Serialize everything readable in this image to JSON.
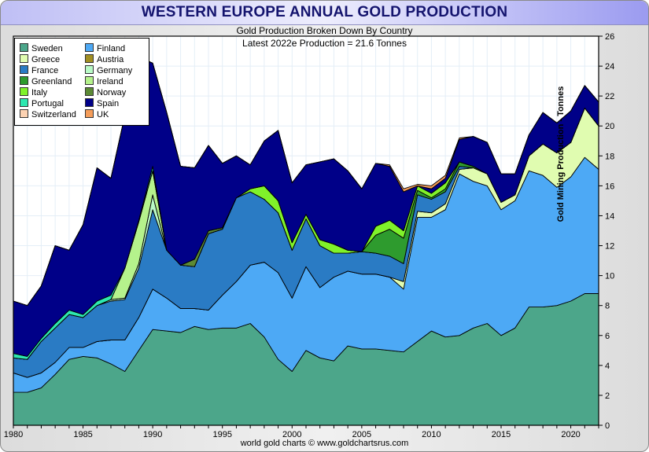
{
  "window": {
    "title": "WESTERN EUROPE ANNUAL GOLD PRODUCTION",
    "footer": "world gold charts © www.goldchartsrus.com"
  },
  "chart_data": {
    "type": "area",
    "stacked": true,
    "title": "WESTERN EUROPE ANNUAL GOLD PRODUCTION",
    "subtitle": "Gold Production Broken Down By Country",
    "annotation": "Latest 2022e Production = 21.6 Tonnes",
    "xlabel": "",
    "ylabel": "Gold Mining Production - Tonnes",
    "xlim": [
      1980,
      2022
    ],
    "ylim": [
      0,
      26
    ],
    "grid": true,
    "legend_position": "top-left",
    "x_ticks": [
      1980,
      1985,
      1990,
      1995,
      2000,
      2005,
      2010,
      2015,
      2020
    ],
    "y_ticks": [
      0,
      2,
      4,
      6,
      8,
      10,
      12,
      14,
      16,
      18,
      20,
      22,
      24,
      26
    ],
    "x": [
      1980,
      1981,
      1982,
      1983,
      1984,
      1985,
      1986,
      1987,
      1988,
      1989,
      1990,
      1991,
      1992,
      1993,
      1994,
      1995,
      1996,
      1997,
      1998,
      1999,
      2000,
      2001,
      2002,
      2003,
      2004,
      2005,
      2006,
      2007,
      2008,
      2009,
      2010,
      2011,
      2012,
      2013,
      2014,
      2015,
      2016,
      2017,
      2018,
      2019,
      2020,
      2021,
      2022
    ],
    "series": [
      {
        "name": "Sweden",
        "color": "#4ca68a",
        "values": [
          2.2,
          2.2,
          2.5,
          3.4,
          4.4,
          4.6,
          4.5,
          4.1,
          3.6,
          5.0,
          6.4,
          6.3,
          6.2,
          6.6,
          6.4,
          6.5,
          6.5,
          6.8,
          5.9,
          4.4,
          3.6,
          5.0,
          4.5,
          4.3,
          5.3,
          5.1,
          5.1,
          5.0,
          4.9,
          5.6,
          6.3,
          5.9,
          6.0,
          6.5,
          6.8,
          6.0,
          6.5,
          7.9,
          7.9,
          8.0,
          8.3,
          8.8,
          8.8
        ]
      },
      {
        "name": "Finland",
        "color": "#4da9f5",
        "values": [
          1.3,
          1.0,
          1.0,
          0.8,
          0.8,
          0.6,
          1.1,
          1.6,
          2.1,
          2.2,
          2.7,
          2.2,
          1.6,
          1.2,
          1.3,
          2.2,
          3.1,
          3.9,
          5.0,
          5.8,
          4.9,
          5.6,
          4.7,
          5.6,
          5.0,
          5.0,
          5.0,
          4.9,
          4.2,
          8.3,
          7.6,
          8.5,
          10.8,
          9.8,
          9.2,
          8.4,
          8.5,
          9.1,
          8.8,
          7.9,
          8.3,
          9.1,
          8.3
        ]
      },
      {
        "name": "Greece",
        "color": "#e0fcb0",
        "values": [
          0,
          0,
          0,
          0,
          0,
          0,
          0,
          0,
          0,
          0,
          0,
          0,
          0,
          0,
          0,
          0,
          0,
          0,
          0,
          0,
          0,
          0,
          0,
          0,
          0,
          0,
          0,
          0,
          0.5,
          0.4,
          0.3,
          0.4,
          0.3,
          0.9,
          0.8,
          0.5,
          0.4,
          1.0,
          2.1,
          2.3,
          2.3,
          3.3,
          2.9
        ]
      },
      {
        "name": "Austria",
        "color": "#a18f22",
        "values": [
          0,
          0,
          0,
          0,
          0,
          0,
          0,
          0,
          0,
          0,
          0,
          0,
          0,
          0,
          0,
          0,
          0,
          0,
          0,
          0,
          0,
          0,
          0,
          0,
          0,
          0,
          0,
          0,
          0,
          0,
          0,
          0,
          0,
          0,
          0,
          0,
          0,
          0,
          0,
          0,
          0,
          0,
          0
        ]
      },
      {
        "name": "France",
        "color": "#2a7bc4",
        "values": [
          1.0,
          1.2,
          2.1,
          2.3,
          2.2,
          2.0,
          2.4,
          2.6,
          2.7,
          3.3,
          5.3,
          3.2,
          2.9,
          2.8,
          5.1,
          4.4,
          5.6,
          4.9,
          4.2,
          4.0,
          3.2,
          3.2,
          2.8,
          1.6,
          1.2,
          1.5,
          1.4,
          1.4,
          1.2,
          1.1,
          0.9,
          0.8,
          0.2,
          0,
          0,
          0,
          0,
          0,
          0,
          0,
          0,
          0,
          0
        ]
      },
      {
        "name": "Germany",
        "color": "#b9fac6",
        "values": [
          0,
          0,
          0,
          0,
          0,
          0,
          0,
          0.1,
          0.1,
          0.3,
          1.0,
          0,
          0,
          0,
          0,
          0,
          0,
          0,
          0,
          0,
          0,
          0,
          0,
          0,
          0,
          0,
          0,
          0,
          0,
          0,
          0,
          0,
          0,
          0,
          0,
          0,
          0,
          0,
          0,
          0,
          0,
          0,
          0
        ]
      },
      {
        "name": "Greenland",
        "color": "#2e9b2e",
        "values": [
          0,
          0,
          0,
          0,
          0,
          0,
          0,
          0,
          0,
          0,
          0,
          0,
          0,
          0,
          0,
          0,
          0,
          0,
          0,
          0,
          0,
          0,
          0,
          0,
          0,
          0,
          1.2,
          1.8,
          1.7,
          0.3,
          0.1,
          0.2,
          0.3,
          0.1,
          0,
          0,
          0,
          0,
          0,
          0,
          0,
          0,
          0
        ]
      },
      {
        "name": "Ireland",
        "color": "#b5f28c",
        "values": [
          0,
          0,
          0,
          0,
          0,
          0,
          0,
          0,
          2.0,
          2.8,
          1.6,
          0,
          0,
          0,
          0,
          0,
          0,
          0,
          0,
          0,
          0,
          0,
          0,
          0,
          0,
          0,
          0,
          0,
          0,
          0,
          0,
          0,
          0,
          0,
          0,
          0,
          0,
          0,
          0,
          0,
          0,
          0,
          0
        ]
      },
      {
        "name": "Italy",
        "color": "#80f22a",
        "values": [
          0,
          0,
          0,
          0,
          0,
          0,
          0,
          0,
          0,
          0,
          0,
          0,
          0,
          0,
          0,
          0,
          0,
          0.2,
          0.9,
          0.8,
          0.5,
          0.3,
          0.4,
          0.6,
          0.2,
          0,
          0.6,
          0.6,
          0.5,
          0.3,
          0.3,
          0.4,
          0,
          0,
          0,
          0,
          0,
          0,
          0,
          0,
          0,
          0,
          0
        ]
      },
      {
        "name": "Norway",
        "color": "#5c8a35",
        "values": [
          0,
          0,
          0,
          0,
          0,
          0,
          0,
          0,
          0,
          0,
          0,
          0,
          0,
          0.5,
          0.2,
          0.1,
          0,
          0,
          0,
          0,
          0,
          0,
          0,
          0,
          0,
          0,
          0,
          0,
          0,
          0,
          0,
          0,
          0,
          0,
          0,
          0,
          0,
          0,
          0,
          0,
          0,
          0,
          0
        ]
      },
      {
        "name": "Portugal",
        "color": "#2de8b0",
        "values": [
          0.3,
          0.2,
          0.2,
          0.3,
          0.3,
          0.2,
          0.3,
          0.3,
          0,
          0.1,
          0.3,
          0,
          0,
          0,
          0,
          0,
          0,
          0,
          0,
          0,
          0,
          0,
          0,
          0,
          0,
          0,
          0,
          0,
          0,
          0,
          0,
          0,
          0,
          0,
          0,
          0,
          0,
          0,
          0,
          0,
          0,
          0,
          0
        ]
      },
      {
        "name": "Spain",
        "color": "#000088",
        "values": [
          3.5,
          3.4,
          3.5,
          5.2,
          4.0,
          6.0,
          8.9,
          7.8,
          10.2,
          10.9,
          6.9,
          9.2,
          6.6,
          6.1,
          5.7,
          4.3,
          2.8,
          1.6,
          3.0,
          4.7,
          4.0,
          3.3,
          5.2,
          5.7,
          5.3,
          4.2,
          4.2,
          3.6,
          2.6,
          0,
          0.3,
          0.3,
          1.5,
          2.0,
          2.1,
          1.9,
          1.4,
          1.4,
          2.1,
          2.0,
          2.1,
          1.5,
          1.6
        ]
      },
      {
        "name": "Switzerland",
        "color": "#fcd2b2",
        "values": [
          0,
          0,
          0,
          0,
          0,
          0,
          0,
          0,
          0,
          0,
          0,
          0,
          0,
          0,
          0,
          0,
          0,
          0,
          0,
          0,
          0,
          0,
          0,
          0,
          0,
          0,
          0,
          0,
          0,
          0,
          0,
          0,
          0,
          0,
          0,
          0,
          0,
          0,
          0,
          0,
          0,
          0,
          0
        ]
      },
      {
        "name": "UK",
        "color": "#f59d5a",
        "values": [
          0,
          0,
          0,
          0,
          0,
          0,
          0,
          0,
          0,
          0,
          0,
          0,
          0,
          0,
          0,
          0,
          0,
          0,
          0,
          0,
          0,
          0,
          0,
          0,
          0,
          0,
          0,
          0.1,
          0.2,
          0.1,
          0.2,
          0.2,
          0.1,
          0,
          0,
          0,
          0,
          0,
          0,
          0,
          0,
          0,
          0
        ]
      }
    ],
    "legend_order": [
      "Sweden",
      "Finland",
      "Greece",
      "Austria",
      "France",
      "Germany",
      "Greenland",
      "Ireland",
      "Italy",
      "Norway",
      "Portugal",
      "Spain",
      "Switzerland",
      "UK"
    ]
  }
}
